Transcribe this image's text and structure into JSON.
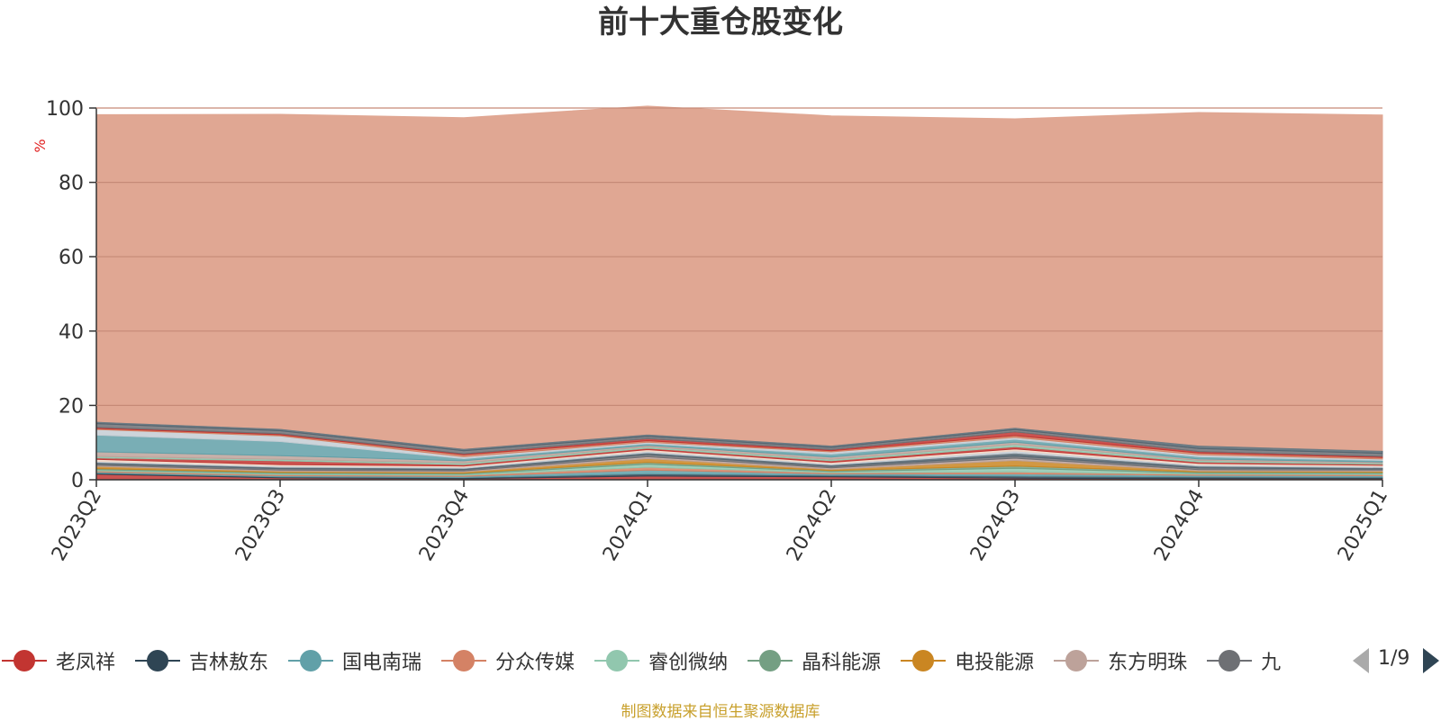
{
  "chart_data": {
    "type": "area",
    "title": "前十大重仓股变化",
    "ylabel": "%",
    "ylim": [
      0,
      100
    ],
    "yticks": [
      "0",
      "20",
      "40",
      "60",
      "80",
      "100"
    ],
    "grid": true,
    "stacked": true,
    "x": [
      "2023Q2",
      "2023Q3",
      "2023Q4",
      "2024Q1",
      "2024Q2",
      "2024Q3",
      "2024Q4",
      "2025Q1"
    ],
    "series": [
      {
        "name": "老凤祥",
        "color": "#c23531",
        "values": [
          1.5,
          0.5,
          0.3,
          1.0,
          0.8,
          0.4,
          0.3,
          0.3
        ]
      },
      {
        "name": "吉林敖东",
        "color": "#2f4554",
        "values": [
          0.3,
          0.3,
          0.3,
          0.6,
          0.4,
          0.6,
          0.5,
          0.4
        ]
      },
      {
        "name": "国电南瑞",
        "color": "#61a0a8",
        "values": [
          0.3,
          0.3,
          0.3,
          1.0,
          0.4,
          0.6,
          0.4,
          0.4
        ]
      },
      {
        "name": "分众传媒",
        "color": "#d48265",
        "values": [
          0.3,
          0.3,
          0.3,
          0.8,
          0.3,
          0.5,
          0.3,
          0.3
        ]
      },
      {
        "name": "睿创微纳",
        "color": "#91c7ae",
        "values": [
          0.3,
          0.3,
          0.3,
          0.8,
          0.3,
          1.0,
          0.3,
          0.3
        ]
      },
      {
        "name": "晶科能源",
        "color": "#749f83",
        "values": [
          0.3,
          0.3,
          0.3,
          0.5,
          0.3,
          0.6,
          0.3,
          0.3
        ]
      },
      {
        "name": "电投能源",
        "color": "#ca8622",
        "values": [
          0.6,
          0.3,
          0.3,
          1.0,
          0.3,
          1.5,
          0.3,
          0.3
        ]
      },
      {
        "name": "东方明珠",
        "color": "#bda29a",
        "values": [
          0.3,
          0.3,
          0.3,
          0.5,
          0.4,
          0.6,
          0.3,
          0.3
        ]
      },
      {
        "color": "#6e7074",
        "values": [
          0.4,
          0.4,
          0.3,
          0.6,
          0.4,
          0.6,
          0.5,
          0.3
        ]
      },
      {
        "color": "#546570",
        "values": [
          0.4,
          0.4,
          0.4,
          0.5,
          0.4,
          0.8,
          0.5,
          0.4
        ]
      },
      {
        "color": "#c4ccd3",
        "values": [
          0.3,
          0.3,
          0.3,
          0.4,
          0.3,
          0.6,
          0.3,
          0.3
        ]
      },
      {
        "color": "#f0d8c8",
        "values": [
          0.5,
          0.4,
          0.3,
          0.4,
          0.4,
          0.5,
          0.4,
          0.3
        ]
      },
      {
        "color": "#c23531",
        "values": [
          0.4,
          1.0,
          0.4,
          0.4,
          0.4,
          0.6,
          0.4,
          0.3
        ]
      },
      {
        "color": "#91c7ae",
        "values": [
          0.4,
          0.4,
          0.4,
          0.4,
          0.4,
          0.6,
          0.4,
          0.3
        ]
      },
      {
        "color": "#bda29a",
        "values": [
          1.2,
          1.0,
          0.6,
          0.4,
          0.6,
          0.6,
          0.4,
          0.3
        ]
      },
      {
        "color": "#61a0a8",
        "values": [
          4.5,
          3.8,
          0.6,
          0.4,
          0.8,
          0.8,
          0.6,
          0.4
        ]
      },
      {
        "color": "#c4ccd3",
        "values": [
          1.5,
          1.5,
          0.5,
          0.4,
          0.6,
          0.5,
          0.5,
          0.4
        ]
      },
      {
        "color": "#d48265",
        "values": [
          0.3,
          0.3,
          0.5,
          0.4,
          0.3,
          0.5,
          0.5,
          0.4
        ]
      },
      {
        "color": "#c23531",
        "values": [
          0.3,
          0.3,
          0.3,
          0.6,
          0.3,
          1.0,
          0.4,
          0.3
        ]
      },
      {
        "color": "#6e7074",
        "values": [
          1.0,
          0.8,
          0.8,
          0.6,
          0.6,
          0.6,
          0.8,
          0.8
        ]
      },
      {
        "color": "#546570",
        "values": [
          0.6,
          0.6,
          0.6,
          0.6,
          0.6,
          0.6,
          0.9,
          0.8
        ]
      },
      {
        "color": "#e0a793",
        "values": [
          82.5,
          84.5,
          89.0,
          88.2,
          88.6,
          83.0,
          89.5,
          90.2
        ]
      }
    ]
  },
  "legend": {
    "items": [
      {
        "name": "老凤祥",
        "color": "#c23531"
      },
      {
        "name": "吉林敖东",
        "color": "#2f4554"
      },
      {
        "name": "国电南瑞",
        "color": "#61a0a8"
      },
      {
        "name": "分众传媒",
        "color": "#d48265"
      },
      {
        "name": "睿创微纳",
        "color": "#91c7ae"
      },
      {
        "name": "晶科能源",
        "color": "#749f83"
      },
      {
        "name": "电投能源",
        "color": "#ca8622"
      },
      {
        "name": "东方明珠",
        "color": "#bda29a"
      },
      {
        "name": "九",
        "color": "#6e7074"
      }
    ],
    "page_indicator": "1/9",
    "prev_icon": "arrow-left-icon",
    "next_icon": "arrow-right-icon"
  },
  "footer": {
    "source_note": "制图数据来自恒生聚源数据库"
  }
}
